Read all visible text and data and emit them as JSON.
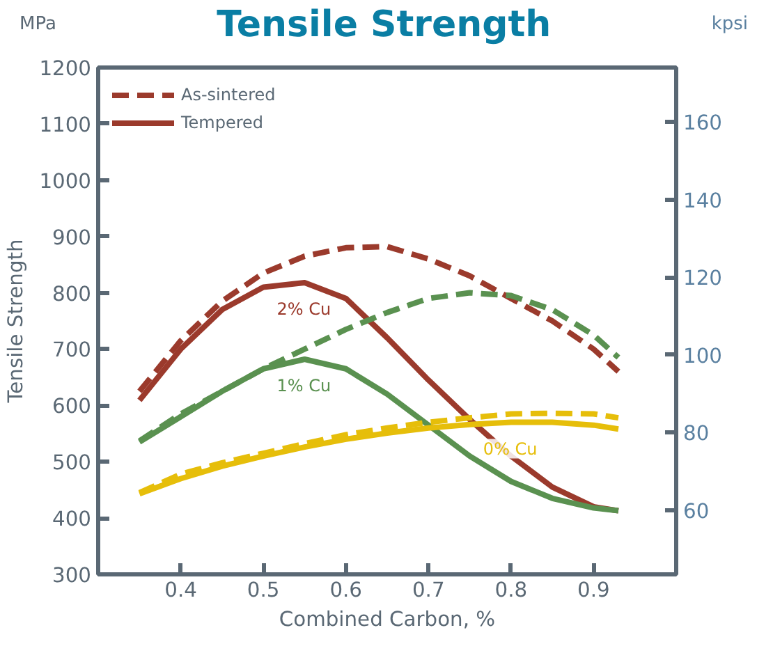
{
  "chart_data": {
    "type": "line",
    "title": "Tensile Strength",
    "xlabel": "Combined Carbon, %",
    "ylabel": "Tensile Strength",
    "y2label": "kpsi",
    "annotations": [
      "MPa",
      "2% Cu",
      "1% Cu",
      "0% Cu"
    ],
    "x": [
      0.35,
      0.4,
      0.45,
      0.5,
      0.55,
      0.6,
      0.65,
      0.7,
      0.75,
      0.8,
      0.85,
      0.9,
      0.93
    ],
    "series": [
      {
        "name": "As-sintered",
        "color": "#9b3a2c",
        "line_style": "dashed",
        "values": [
          625,
          715,
          785,
          835,
          865,
          880,
          882,
          860,
          830,
          790,
          750,
          700,
          660
        ]
      },
      {
        "name": "Tempered",
        "color": "#9b3a2c",
        "line_style": "solid",
        "values": [
          609,
          700,
          770,
          810,
          818,
          790,
          720,
          645,
          575,
          510,
          455,
          420,
          413
        ]
      },
      {
        "color": "#5a9150",
        "line_style": "dashed",
        "values": [
          537,
          585,
          625,
          665,
          700,
          735,
          765,
          790,
          800,
          795,
          770,
          725,
          685
        ]
      },
      {
        "color": "#5a9150",
        "line_style": "solid",
        "values": [
          535,
          580,
          625,
          665,
          682,
          665,
          620,
          565,
          510,
          465,
          435,
          418,
          413
        ]
      },
      {
        "color": "#e6be0a",
        "line_style": "dashed",
        "values": [
          445,
          478,
          498,
          515,
          532,
          548,
          560,
          570,
          578,
          585,
          586,
          585,
          578
        ]
      },
      {
        "color": "#e6be0a",
        "line_style": "solid",
        "values": [
          443,
          470,
          492,
          510,
          526,
          540,
          551,
          560,
          566,
          570,
          570,
          565,
          558
        ]
      }
    ],
    "xlim": [
      0.3,
      1.0
    ],
    "xticks": [
      0.4,
      0.5,
      0.6,
      0.7,
      0.8,
      0.9
    ],
    "ylim": [
      300,
      1200
    ],
    "yticks": [
      300,
      400,
      500,
      600,
      700,
      800,
      900,
      1000,
      1100,
      1200
    ],
    "y2lim": [
      43.5,
      174.0
    ],
    "y2ticks": [
      60,
      80,
      100,
      120,
      140,
      160
    ],
    "legend": "top left",
    "grid": false
  }
}
